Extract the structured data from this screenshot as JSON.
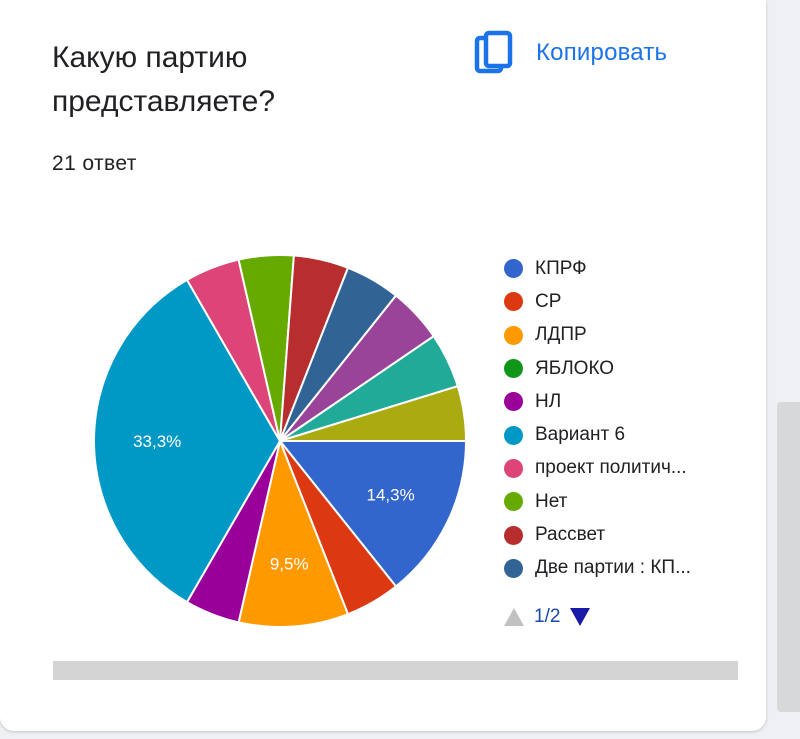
{
  "question": {
    "title": "Какую партию представляете?",
    "response_count": "21 ответ"
  },
  "copy_button": {
    "label": "Копировать",
    "icon": "copy-icon",
    "color": "#1a73e8"
  },
  "pager": {
    "text": "1/2"
  },
  "chart_data": {
    "type": "pie",
    "total_responses": 21,
    "slices": [
      {
        "label": "КПРФ",
        "value": 3,
        "percent_label": "14,3%",
        "color": "#3366cc"
      },
      {
        "label": "СР",
        "value": 1,
        "percent_label": "",
        "color": "#dc3912"
      },
      {
        "label": "ЛДПР",
        "value": 2,
        "percent_label": "9,5%",
        "color": "#ff9900"
      },
      {
        "label": "ЯБЛОКО",
        "value": 0,
        "percent_label": "",
        "color": "#109618"
      },
      {
        "label": "НЛ",
        "value": 1,
        "percent_label": "",
        "color": "#990099"
      },
      {
        "label": "Вариант 6",
        "value": 7,
        "percent_label": "33,3%",
        "color": "#0099c6"
      },
      {
        "label": "проект политич...",
        "value": 1,
        "percent_label": "",
        "color": "#dd4477"
      },
      {
        "label": "Нет",
        "value": 1,
        "percent_label": "",
        "color": "#66aa00"
      },
      {
        "label": "Рассвет",
        "value": 1,
        "percent_label": "",
        "color": "#b82e2e"
      },
      {
        "label": "Две партии : КП...",
        "value": 1,
        "percent_label": "",
        "color": "#316395"
      },
      {
        "label": "",
        "value": 1,
        "percent_label": "",
        "color": "#994499"
      },
      {
        "label": "",
        "value": 1,
        "percent_label": "",
        "color": "#22aa99"
      },
      {
        "label": "",
        "value": 1,
        "percent_label": "",
        "color": "#aaaa11"
      }
    ],
    "legend_visible_count": 10,
    "legend_placement": "right"
  }
}
